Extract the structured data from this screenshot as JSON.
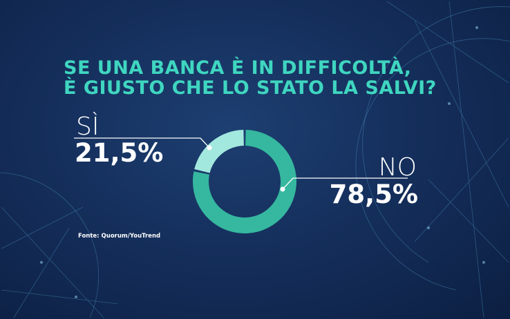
{
  "chart_data": {
    "type": "pie",
    "donut": true,
    "title_lines": [
      "SE UNA BANCA È IN DIFFICOLTÀ,",
      "È GIUSTO CHE LO STATO LA SALVI?"
    ],
    "slices": [
      {
        "label": "NO",
        "value": 78.5,
        "display": "78,5%",
        "color": "#35b89f"
      },
      {
        "label": "SÌ",
        "value": 21.5,
        "display": "21,5%",
        "color": "#a3e8de"
      }
    ],
    "source": "Fonte: Quorum/YouTrend"
  },
  "colors": {
    "title": "#3fd6c0",
    "background": "#152f5c",
    "text": "#ffffff"
  }
}
